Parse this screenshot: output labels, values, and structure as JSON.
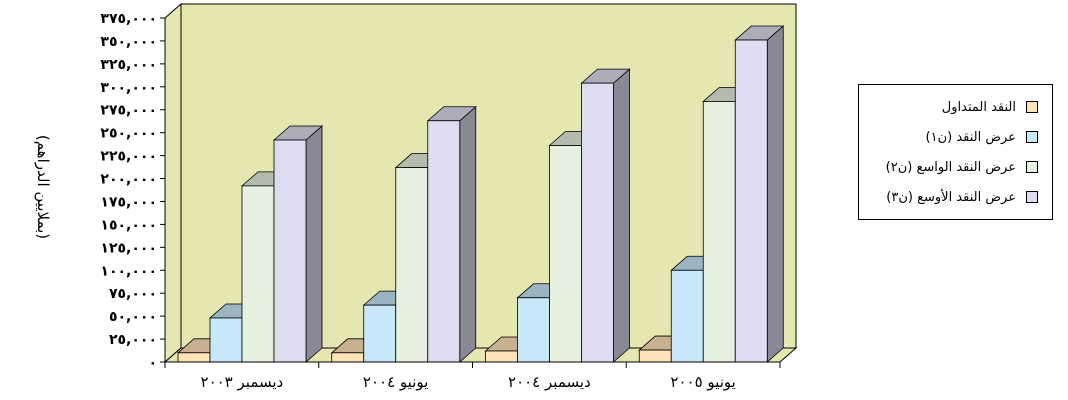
{
  "chart_data": {
    "type": "bar",
    "categories": [
      "ديسمبر ٢٠٠٣",
      "يونيو ٢٠٠٤",
      "ديسمبر ٢٠٠٤",
      "يونيو ٢٠٠٥"
    ],
    "series": [
      {
        "name": "النقد المتداول",
        "color": "#ffe3b8",
        "values": [
          10000,
          10000,
          12000,
          13000
        ]
      },
      {
        "name": "عرض النقد (ن١)",
        "color": "#c6e8f8",
        "values": [
          48000,
          62000,
          70000,
          100000
        ]
      },
      {
        "name": "عرض النقد الواسع (ن٢)",
        "color": "#e6f0de",
        "values": [
          192000,
          212000,
          236000,
          284000
        ]
      },
      {
        "name": "عرض النقد الأوسع (ن٣)",
        "color": "#dedcf0",
        "values": [
          242000,
          263000,
          304000,
          351000
        ]
      }
    ],
    "ylabel": "(بملايين الدراهم)",
    "ylim": [
      0,
      375000
    ],
    "ytick_labels": [
      "٠",
      "٢٥,٠٠٠",
      "٥٠,٠٠٠",
      "٧٥,٠٠٠",
      "١٠٠,٠٠٠",
      "١٢٥,٠٠٠",
      "١٥٠,٠٠٠",
      "١٧٥,٠٠٠",
      "٢٠٠,٠٠٠",
      "٢٢٥,٠٠٠",
      "٢٥٠,٠٠٠",
      "٢٧٥,٠٠٠",
      "٣٠٠,٠٠٠",
      "٣٢٥,٠٠٠",
      "٣٥٠,٠٠٠",
      "٣٧٥,٠٠٠"
    ],
    "grid": false,
    "plot_background": "#e6e6b0",
    "legend_position": "right"
  }
}
